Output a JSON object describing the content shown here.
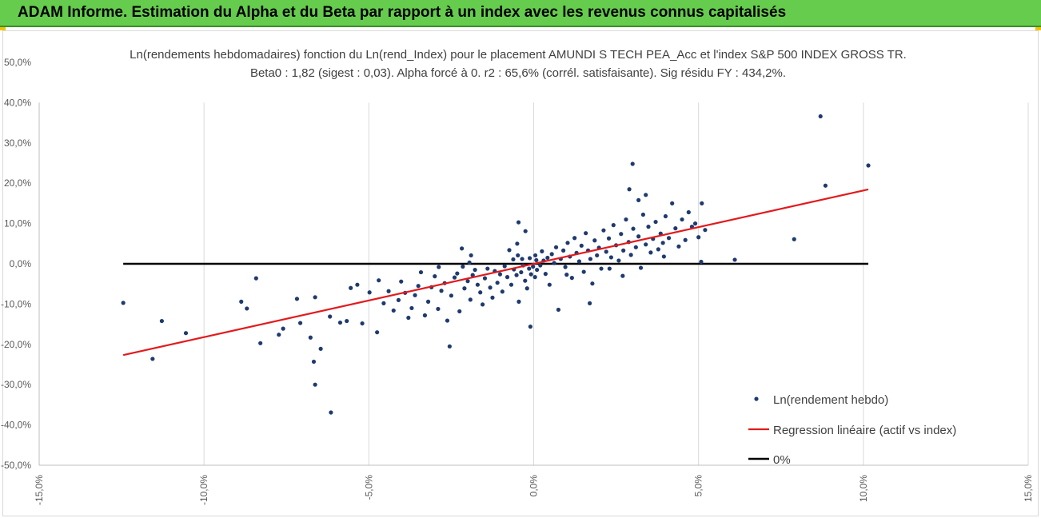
{
  "header": {
    "title": "ADAM Informe. Estimation du Alpha et du Beta par rapport à un index avec les revenus connus capitalisés"
  },
  "colors": {
    "banner": "#66cc4d",
    "points": "#1f3a6e",
    "regression": "#e31a1c",
    "zero_line": "#000000"
  },
  "chart_data": {
    "type": "scatter",
    "title": "Ln(rendements hebdomadaires) fonction du Ln(rend_Index) pour le placement AMUNDI S TECH PEA_Acc et l'index S&P 500 INDEX GROSS TR.",
    "subtitle": "Beta0 : 1,82  (sigest : 0,03).  Alpha forcé à 0. r2 : 65,6% (corrél. satisfaisante). Sig résidu FY : 434,2%.",
    "xlim": [
      -0.15,
      0.15
    ],
    "ylim": [
      -0.5,
      0.5
    ],
    "x_ticks": [
      "-15,0%",
      "-10,0%",
      "-5,0%",
      "0,0%",
      "5,0%",
      "10,0%",
      "15,0%"
    ],
    "y_ticks": [
      "50,0%",
      "40,0%",
      "30,0%",
      "20,0%",
      "10,0%",
      "0,0%",
      "-10,0%",
      "-20,0%",
      "-30,0%",
      "-40,0%",
      "-50,0%"
    ],
    "grid": "vertical",
    "legend_position": "bottom-right",
    "series": [
      {
        "name": "Ln(rendement hebdo)",
        "type": "scatter",
        "points": [
          [
            -0.1245,
            -0.097
          ],
          [
            -0.1156,
            -0.236
          ],
          [
            -0.1128,
            -0.142
          ],
          [
            -0.1055,
            -0.172
          ],
          [
            -0.0887,
            -0.094
          ],
          [
            -0.087,
            -0.111
          ],
          [
            -0.0842,
            -0.036
          ],
          [
            -0.0829,
            -0.197
          ],
          [
            -0.0773,
            -0.176
          ],
          [
            -0.076,
            -0.161
          ],
          [
            -0.0718,
            -0.087
          ],
          [
            -0.0708,
            -0.147
          ],
          [
            -0.0677,
            -0.183
          ],
          [
            -0.0667,
            -0.243
          ],
          [
            -0.0663,
            -0.3
          ],
          [
            -0.0663,
            -0.083
          ],
          [
            -0.0646,
            -0.211
          ],
          [
            -0.0618,
            -0.131
          ],
          [
            -0.0615,
            -0.369
          ],
          [
            -0.0587,
            -0.146
          ],
          [
            -0.0567,
            -0.142
          ],
          [
            -0.0555,
            -0.06
          ],
          [
            -0.0535,
            -0.052
          ],
          [
            -0.052,
            -0.148
          ],
          [
            -0.0498,
            -0.071
          ],
          [
            -0.0475,
            -0.17
          ],
          [
            -0.047,
            -0.041
          ],
          [
            -0.0455,
            -0.098
          ],
          [
            -0.044,
            -0.068
          ],
          [
            -0.0425,
            -0.116
          ],
          [
            -0.041,
            -0.09
          ],
          [
            -0.0402,
            -0.044
          ],
          [
            -0.039,
            -0.072
          ],
          [
            -0.038,
            -0.134
          ],
          [
            -0.037,
            -0.11
          ],
          [
            -0.036,
            -0.078
          ],
          [
            -0.035,
            -0.055
          ],
          [
            -0.0342,
            -0.021
          ],
          [
            -0.033,
            -0.128
          ],
          [
            -0.032,
            -0.094
          ],
          [
            -0.031,
            -0.058
          ],
          [
            -0.03,
            -0.031
          ],
          [
            -0.029,
            -0.112
          ],
          [
            -0.028,
            -0.067
          ],
          [
            -0.027,
            -0.048
          ],
          [
            -0.0262,
            -0.141
          ],
          [
            -0.0255,
            -0.205
          ],
          [
            -0.025,
            -0.079
          ],
          [
            -0.024,
            -0.034
          ],
          [
            -0.0232,
            -0.024
          ],
          [
            -0.0225,
            -0.118
          ],
          [
            -0.0218,
            0.038
          ],
          [
            -0.021,
            -0.061
          ],
          [
            -0.02,
            -0.043
          ],
          [
            -0.0192,
            -0.089
          ],
          [
            -0.0185,
            -0.028
          ],
          [
            -0.0178,
            -0.015
          ],
          [
            -0.017,
            -0.052
          ],
          [
            -0.0162,
            -0.071
          ],
          [
            -0.0155,
            -0.101
          ],
          [
            -0.0148,
            -0.036
          ],
          [
            -0.014,
            -0.012
          ],
          [
            -0.0132,
            -0.059
          ],
          [
            -0.0125,
            -0.084
          ],
          [
            -0.0118,
            -0.018
          ],
          [
            -0.011,
            -0.047
          ],
          [
            -0.0102,
            -0.026
          ],
          [
            -0.0095,
            -0.069
          ],
          [
            -0.0088,
            -0.006
          ],
          [
            -0.008,
            -0.033
          ],
          [
            -0.0074,
            0.034
          ],
          [
            -0.0068,
            -0.052
          ],
          [
            -0.006,
            -0.014
          ],
          [
            -0.0052,
            -0.028
          ],
          [
            -0.0045,
            -0.094
          ],
          [
            -0.0038,
            -0.021
          ],
          [
            -0.0032,
            -0.004
          ],
          [
            -0.0026,
            -0.042
          ],
          [
            -0.002,
            -0.061
          ],
          [
            -0.0014,
            -0.012
          ],
          [
            -0.0008,
            -0.026
          ],
          [
            -0.0002,
            -0.007
          ],
          [
            0.0004,
            -0.033
          ],
          [
            -0.0025,
            0.081
          ],
          [
            -0.005,
            0.05
          ],
          [
            -0.0046,
            0.103
          ],
          [
            -0.0048,
            0.021
          ],
          [
            -0.0035,
            0.012
          ],
          [
            -0.0012,
            0.014
          ],
          [
            0.0005,
            0.021
          ],
          [
            0.001,
            -0.015
          ],
          [
            -0.001,
            -0.156
          ],
          [
            0.002,
            -0.004
          ],
          [
            0.0025,
            0.031
          ],
          [
            0.003,
            0.008
          ],
          [
            0.0036,
            -0.025
          ],
          [
            0.0042,
            0.015
          ],
          [
            0.0048,
            -0.052
          ],
          [
            0.0055,
            0.024
          ],
          [
            0.0062,
            0.002
          ],
          [
            0.0068,
            0.041
          ],
          [
            0.0075,
            -0.114
          ],
          [
            0.0082,
            0.012
          ],
          [
            0.009,
            0.033
          ],
          [
            0.0096,
            -0.008
          ],
          [
            0.0103,
            0.052
          ],
          [
            0.011,
            0.018
          ],
          [
            0.0116,
            -0.035
          ],
          [
            0.0124,
            0.064
          ],
          [
            0.013,
            0.027
          ],
          [
            0.0138,
            0.006
          ],
          [
            0.0145,
            0.045
          ],
          [
            0.0152,
            -0.02
          ],
          [
            0.0158,
            0.076
          ],
          [
            0.0165,
            0.033
          ],
          [
            0.0172,
            0.012
          ],
          [
            0.0178,
            -0.049
          ],
          [
            0.0185,
            0.058
          ],
          [
            0.0192,
            0.021
          ],
          [
            0.0198,
            0.04
          ],
          [
            0.0205,
            -0.012
          ],
          [
            0.0212,
            0.083
          ],
          [
            0.022,
            0.03
          ],
          [
            0.0228,
            0.063
          ],
          [
            0.0235,
            0.016
          ],
          [
            0.0242,
            0.096
          ],
          [
            0.025,
            0.046
          ],
          [
            0.0258,
            0.008
          ],
          [
            0.0265,
            0.074
          ],
          [
            0.0272,
            0.033
          ],
          [
            0.028,
            0.11
          ],
          [
            0.0288,
            0.054
          ],
          [
            0.0295,
            0.022
          ],
          [
            0.0302,
            0.087
          ],
          [
            0.031,
            0.041
          ],
          [
            0.0318,
            0.068
          ],
          [
            0.0325,
            -0.01
          ],
          [
            0.0332,
            0.122
          ],
          [
            0.034,
            0.048
          ],
          [
            0.0348,
            0.092
          ],
          [
            0.0355,
            0.028
          ],
          [
            0.0362,
            0.062
          ],
          [
            0.037,
            0.104
          ],
          [
            0.0378,
            0.036
          ],
          [
            0.0385,
            0.075
          ],
          [
            0.0392,
            0.052
          ],
          [
            0.04,
            0.118
          ],
          [
            0.041,
            0.064
          ],
          [
            0.042,
            0.15
          ],
          [
            0.043,
            0.088
          ],
          [
            0.044,
            0.043
          ],
          [
            0.045,
            0.11
          ],
          [
            0.046,
            0.059
          ],
          [
            0.047,
            0.128
          ],
          [
            0.048,
            0.092
          ],
          [
            0.049,
            0.1
          ],
          [
            0.05,
            0.066
          ],
          [
            0.051,
            0.15
          ],
          [
            0.052,
            0.084
          ],
          [
            0.0508,
            0.005
          ],
          [
            0.0395,
            0.018
          ],
          [
            0.029,
            0.185
          ],
          [
            0.03,
            0.248
          ],
          [
            0.0318,
            0.158
          ],
          [
            0.034,
            0.171
          ],
          [
            0.027,
            -0.03
          ],
          [
            0.023,
            -0.012
          ],
          [
            0.017,
            -0.098
          ],
          [
            0.01,
            -0.027
          ],
          [
            0.061,
            0.01
          ],
          [
            0.079,
            0.061
          ],
          [
            0.087,
            0.366
          ],
          [
            0.0885,
            0.194
          ],
          [
            0.1015,
            0.244
          ],
          [
            -0.019,
            0.021
          ],
          [
            -0.0215,
            -0.007
          ],
          [
            -0.0288,
            -0.008
          ],
          [
            -0.0195,
            0.003
          ],
          [
            -0.0062,
            0.011
          ],
          [
            0.0008,
            0.009
          ]
        ]
      },
      {
        "name": "Regression linéaire (actif vs index)",
        "type": "line",
        "x": [
          -0.1245,
          0.1015
        ],
        "y": [
          -0.2266,
          0.1847
        ]
      },
      {
        "name": "0%",
        "type": "line",
        "x": [
          -0.1245,
          0.1015
        ],
        "y": [
          0.0,
          0.0
        ]
      }
    ]
  }
}
